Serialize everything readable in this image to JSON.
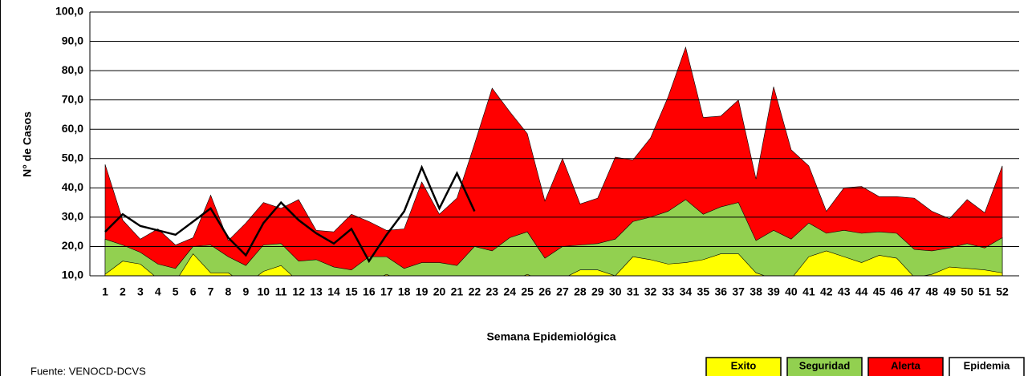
{
  "chart_data": {
    "type": "area",
    "ylabel": "N° de Casos",
    "xlabel": "Semana Epidemiológica",
    "source": "Fuente: VENOCD-DCVS",
    "categories": [
      "1",
      "2",
      "3",
      "4",
      "5",
      "6",
      "7",
      "8",
      "9",
      "10",
      "11",
      "12",
      "13",
      "14",
      "15",
      "16",
      "17",
      "18",
      "19",
      "20",
      "21",
      "22",
      "23",
      "24",
      "25",
      "26",
      "27",
      "28",
      "29",
      "30",
      "31",
      "32",
      "33",
      "34",
      "35",
      "36",
      "37",
      "38",
      "39",
      "40",
      "41",
      "42",
      "43",
      "44",
      "45",
      "46",
      "47",
      "48",
      "49",
      "50",
      "51",
      "52"
    ],
    "ylim": [
      10,
      100
    ],
    "yticks": [
      {
        "value": 10,
        "label": "10,0"
      },
      {
        "value": 20,
        "label": "20,0"
      },
      {
        "value": 30,
        "label": "30,0"
      },
      {
        "value": 40,
        "label": "40,0"
      },
      {
        "value": 50,
        "label": "50,0"
      },
      {
        "value": 60,
        "label": "60,0"
      },
      {
        "value": 70,
        "label": "70,0"
      },
      {
        "value": 80,
        "label": "80,0"
      },
      {
        "value": 90,
        "label": "90,0"
      },
      {
        "value": 100,
        "label": "100,0"
      }
    ],
    "grid": true,
    "series": [
      {
        "name": "Exito",
        "color": "#ffff00",
        "values": [
          10.5,
          15,
          14,
          9,
          8,
          17.5,
          11,
          11,
          7,
          11.5,
          13.5,
          8,
          7,
          6,
          5,
          8,
          10.5,
          8,
          7,
          7,
          7,
          7,
          7,
          8,
          10.5,
          8,
          9,
          12,
          12,
          10,
          16.5,
          15.5,
          14,
          14.5,
          15.5,
          17.5,
          17.5,
          11,
          9,
          9,
          16.5,
          18.5,
          16.5,
          14.5,
          17,
          16,
          9.5,
          10.5,
          13,
          12.5,
          12,
          11
        ]
      },
      {
        "name": "Seguridad",
        "color": "#92d050",
        "values": [
          22.5,
          20.5,
          18,
          14,
          12.5,
          20,
          20.5,
          16.5,
          13.5,
          20.5,
          21,
          15,
          15.5,
          13,
          12,
          16.5,
          16.5,
          12.5,
          14.5,
          14.5,
          13.5,
          20,
          18.5,
          23,
          25,
          16,
          20,
          20.5,
          21,
          22.5,
          28.5,
          30,
          32,
          36,
          31,
          33.5,
          35,
          22,
          25.5,
          22.5,
          28,
          24.5,
          25.5,
          24.5,
          25,
          24.5,
          19,
          18.5,
          19.5,
          21,
          19.5,
          23
        ]
      },
      {
        "name": "Alerta",
        "color": "#ff0000",
        "values": [
          48,
          29,
          22.5,
          26,
          20.5,
          23,
          37.5,
          22,
          28,
          35,
          33,
          36,
          25.5,
          25,
          31,
          28.5,
          25.5,
          26,
          42,
          31,
          36.5,
          55,
          74,
          66,
          58.5,
          35.5,
          50,
          34.5,
          36.5,
          50.5,
          49.5,
          57,
          71,
          88,
          64,
          64.5,
          70,
          43,
          74.5,
          53,
          47.5,
          32,
          40,
          40.5,
          37,
          37,
          36.5,
          32,
          29.5,
          36,
          31.5,
          47.5
        ]
      },
      {
        "type": "line",
        "color": "#000000",
        "values": [
          25,
          31,
          27,
          25.5,
          24,
          28.5,
          33,
          23,
          17,
          28,
          35,
          29,
          24.5,
          21,
          26,
          15,
          24,
          32,
          47,
          33,
          45,
          32,
          null,
          null,
          null,
          null,
          null,
          null,
          null,
          null,
          null,
          null,
          null,
          null,
          null,
          null,
          null,
          null,
          null,
          null,
          null,
          null,
          null,
          null,
          null,
          null,
          null,
          null,
          null,
          null,
          null,
          null
        ]
      }
    ],
    "epidemia": {
      "name": "Epidemia",
      "color": "#ffffff"
    }
  }
}
